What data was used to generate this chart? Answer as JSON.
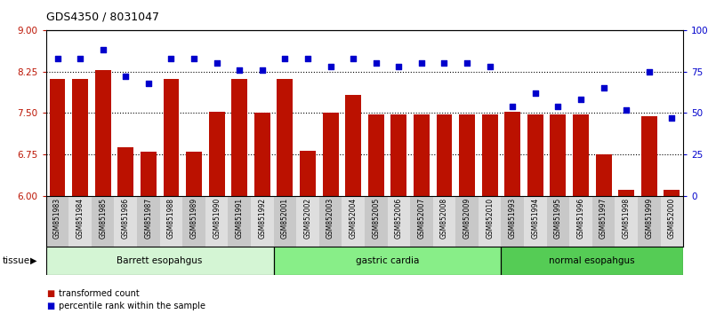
{
  "title": "GDS4350 / 8031047",
  "samples": [
    "GSM851983",
    "GSM851984",
    "GSM851985",
    "GSM851986",
    "GSM851987",
    "GSM851988",
    "GSM851989",
    "GSM851990",
    "GSM851991",
    "GSM851992",
    "GSM852001",
    "GSM852002",
    "GSM852003",
    "GSM852004",
    "GSM852005",
    "GSM852006",
    "GSM852007",
    "GSM852008",
    "GSM852009",
    "GSM852010",
    "GSM851993",
    "GSM851994",
    "GSM851995",
    "GSM851996",
    "GSM851997",
    "GSM851998",
    "GSM851999",
    "GSM852000"
  ],
  "bar_values": [
    8.12,
    8.12,
    8.28,
    6.88,
    6.8,
    8.12,
    6.8,
    7.53,
    8.12,
    7.5,
    8.12,
    6.82,
    7.5,
    7.82,
    7.48,
    7.48,
    7.48,
    7.48,
    7.48,
    7.48,
    7.52,
    7.48,
    7.48,
    7.48,
    6.75,
    6.12,
    7.45,
    6.12
  ],
  "dot_values": [
    83,
    83,
    88,
    72,
    68,
    83,
    83,
    80,
    76,
    76,
    83,
    83,
    78,
    83,
    80,
    78,
    80,
    80,
    80,
    78,
    54,
    62,
    54,
    58,
    65,
    52,
    75,
    47
  ],
  "groups": [
    {
      "label": "Barrett esopahgus",
      "start": 0,
      "end": 10,
      "color": "#d4f5d4"
    },
    {
      "label": "gastric cardia",
      "start": 10,
      "end": 20,
      "color": "#88ee88"
    },
    {
      "label": "normal esopahgus",
      "start": 20,
      "end": 28,
      "color": "#55cc55"
    }
  ],
  "ylim_left": [
    6,
    9
  ],
  "ylim_right": [
    0,
    100
  ],
  "yticks_left": [
    6,
    6.75,
    7.5,
    8.25,
    9
  ],
  "yticks_right": [
    0,
    25,
    50,
    75,
    100
  ],
  "bar_color": "#bb1100",
  "dot_color": "#0000cc",
  "background_color": "#ffffff",
  "title_fontsize": 9,
  "legend_items": [
    "transformed count",
    "percentile rank within the sample"
  ],
  "tissue_label": "tissue"
}
